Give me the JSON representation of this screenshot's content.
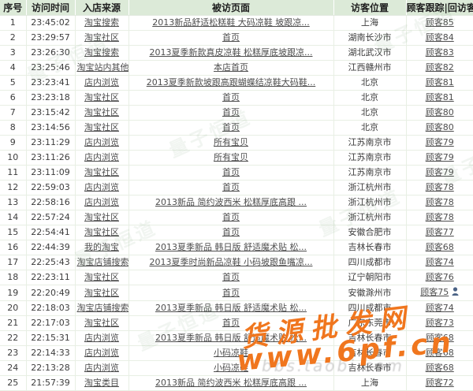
{
  "table": {
    "columns": [
      "序号",
      "访问时间",
      "入店来源",
      "被访页面",
      "访客位置",
      "顾客跟踪|回访客"
    ],
    "rows": [
      {
        "no": "1",
        "time": "23:45:02",
        "source": "淘宝搜索",
        "page": "2013新品舒适松糕鞋 大码凉鞋 坡跟凉...",
        "location": "上海",
        "customer": "顾客85",
        "online": false
      },
      {
        "no": "2",
        "time": "23:29:57",
        "source": "淘宝社区",
        "page": "首页",
        "location": "湖南长沙市",
        "customer": "顾客84",
        "online": false
      },
      {
        "no": "3",
        "time": "23:26:30",
        "source": "淘宝搜索",
        "page": "2013夏季新款真皮凉鞋 松糕厚底坡跟凉...",
        "location": "湖北武汉市",
        "customer": "顾客83",
        "online": false
      },
      {
        "no": "4",
        "time": "23:25:46",
        "source": "淘宝站内其他",
        "page": "本店首页",
        "location": "江西赣州市",
        "customer": "顾客82",
        "online": false
      },
      {
        "no": "5",
        "time": "23:23:41",
        "source": "店内浏览",
        "page": "2013夏季新款坡跟高跟蝴蝶结凉鞋大码鞋...",
        "location": "北京",
        "customer": "顾客81",
        "online": false
      },
      {
        "no": "6",
        "time": "23:23:18",
        "source": "淘宝社区",
        "page": "首页",
        "location": "北京",
        "customer": "顾客81",
        "online": false
      },
      {
        "no": "7",
        "time": "23:15:42",
        "source": "淘宝社区",
        "page": "首页",
        "location": "北京",
        "customer": "顾客80",
        "online": false
      },
      {
        "no": "8",
        "time": "23:14:56",
        "source": "淘宝社区",
        "page": "首页",
        "location": "北京",
        "customer": "顾客80",
        "online": false
      },
      {
        "no": "9",
        "time": "23:11:29",
        "source": "店内浏览",
        "page": "所有宝贝",
        "location": "江苏南京市",
        "customer": "顾客79",
        "online": false
      },
      {
        "no": "10",
        "time": "23:11:26",
        "source": "店内浏览",
        "page": "所有宝贝",
        "location": "江苏南京市",
        "customer": "顾客79",
        "online": false
      },
      {
        "no": "11",
        "time": "23:11:09",
        "source": "淘宝社区",
        "page": "首页",
        "location": "江苏南京市",
        "customer": "顾客79",
        "online": false
      },
      {
        "no": "12",
        "time": "22:59:03",
        "source": "店内浏览",
        "page": "首页",
        "location": "浙江杭州市",
        "customer": "顾客78",
        "online": false
      },
      {
        "no": "13",
        "time": "22:58:16",
        "source": "店内浏览",
        "page": "2013新品 简约波西米 松糕厚底高跟 ...",
        "location": "浙江杭州市",
        "customer": "顾客78",
        "online": false
      },
      {
        "no": "14",
        "time": "22:57:24",
        "source": "淘宝社区",
        "page": "首页",
        "location": "浙江杭州市",
        "customer": "顾客78",
        "online": false
      },
      {
        "no": "15",
        "time": "22:54:41",
        "source": "淘宝社区",
        "page": "首页",
        "location": "安徽合肥市",
        "customer": "顾客77",
        "online": false
      },
      {
        "no": "16",
        "time": "22:44:39",
        "source": "我的淘宝",
        "page": "2013夏季新品 韩日版 舒适魔术贴 松...",
        "location": "吉林长春市",
        "customer": "顾客68",
        "online": false
      },
      {
        "no": "17",
        "time": "22:25:43",
        "source": "淘宝店铺搜索",
        "page": "2013夏季时尚新品凉鞋 小码坡跟鱼嘴凉...",
        "location": "四川成都市",
        "customer": "顾客74",
        "online": false
      },
      {
        "no": "18",
        "time": "22:23:11",
        "source": "淘宝社区",
        "page": "首页",
        "location": "辽宁朝阳市",
        "customer": "顾客76",
        "online": false
      },
      {
        "no": "19",
        "time": "22:20:49",
        "source": "淘宝社区",
        "page": "首页",
        "location": "安徽滁州市",
        "customer": "顾客75",
        "online": true
      },
      {
        "no": "20",
        "time": "22:18:03",
        "source": "淘宝店铺搜索",
        "page": "2013夏季新品 韩日版 舒适魔术贴 松...",
        "location": "四川成都市",
        "customer": "顾客74",
        "online": false
      },
      {
        "no": "21",
        "time": "22:17:03",
        "source": "淘宝社区",
        "page": "首页",
        "location": "广东东莞市",
        "customer": "顾客73",
        "online": false
      },
      {
        "no": "22",
        "time": "22:15:31",
        "source": "店内浏览",
        "page": "2013夏季新品 韩日版 舒适魔术贴 松...",
        "location": "吉林长春市",
        "customer": "顾客68",
        "online": false
      },
      {
        "no": "23",
        "time": "22:14:33",
        "source": "店内浏览",
        "page": "小码凉鞋",
        "location": "吉林长春市",
        "customer": "顾客68",
        "online": false
      },
      {
        "no": "24",
        "time": "22:13:28",
        "source": "店内浏览",
        "page": "小码凉鞋",
        "location": "吉林长春市",
        "customer": "顾客68",
        "online": false
      },
      {
        "no": "25",
        "time": "21:57:39",
        "source": "淘宝类目",
        "page": "2013新品 简约波西米 松糕厚底高跟 ...",
        "location": "上海",
        "customer": "顾客72",
        "online": false
      }
    ]
  },
  "watermarks": {
    "diagonal_text": "量子恒道",
    "site_name": "货源批发网",
    "site_url": "www.6pf.cn",
    "faint_url": "bbs.taobi.com"
  },
  "colors": {
    "header_bg": "#dcead8",
    "grid_line": "#e8efe4",
    "link_text": "#4e4e4e",
    "watermark_orange": "#f0761e"
  }
}
